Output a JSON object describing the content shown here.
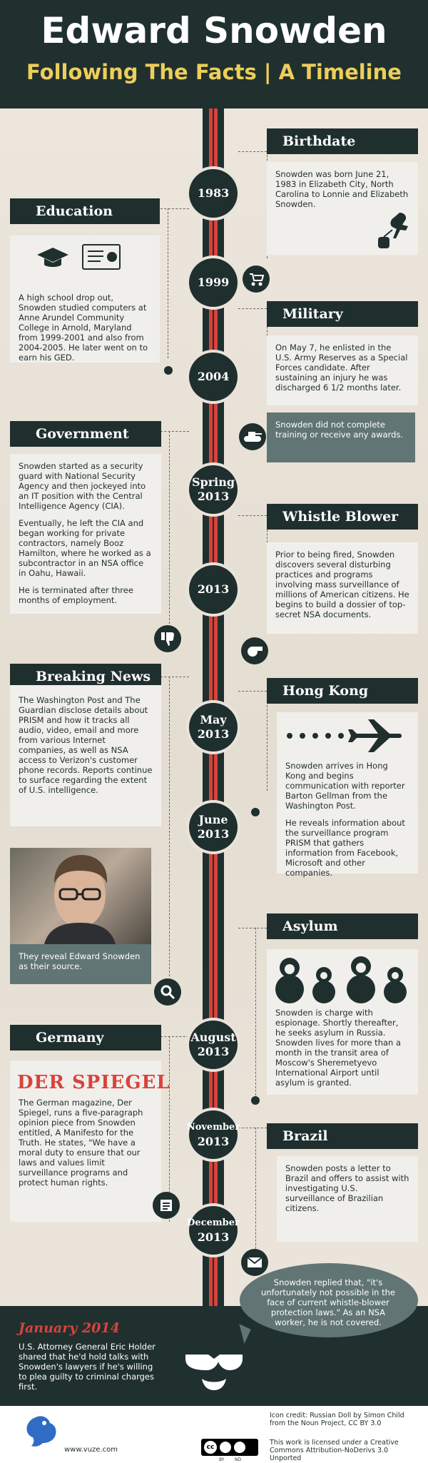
{
  "header": {
    "title": "Edward Snowden",
    "subtitle": "Following The Facts | A Timeline"
  },
  "nodes": [
    {
      "line1": "1983",
      "line2": ""
    },
    {
      "line1": "1999",
      "line2": ""
    },
    {
      "line1": "2004",
      "line2": ""
    },
    {
      "line1": "Spring",
      "line2": "2013"
    },
    {
      "line1": "2013",
      "line2": ""
    },
    {
      "line1": "May",
      "line2": "2013"
    },
    {
      "line1": "June",
      "line2": "2013"
    },
    {
      "line1": "August",
      "line2": "2013"
    },
    {
      "line1": "November",
      "line2": "2013"
    },
    {
      "line1": "December",
      "line2": "2013"
    }
  ],
  "birthdate": {
    "label": "Birthdate",
    "text": "Snowden was born June 21, 1983 in Elizabeth City, North Carolina to Lonnie and Elizabeth Snowden."
  },
  "education": {
    "label": "Education",
    "text": "A high school drop out, Snowden studied computers at Anne Arundel Community College in Arnold, Maryland from 1999-2001 and also from 2004-2005. He later went on to earn his GED."
  },
  "military": {
    "label": "Military",
    "text": "On May 7, he enlisted in the U.S. Army Reserves as a Special Forces candidate. After sustaining an injury he was discharged 6 1/2 months later.",
    "note": "Snowden did not complete training or receive any awards."
  },
  "government": {
    "label": "Government",
    "p1": "Snowden started as a security guard with National Security Agency and then jockeyed into an IT position with the Central Intelligence Agency (CIA).",
    "p2": "Eventually, he left the CIA and began working for private contractors, namely Booz Hamilton, where he worked as a subcontractor in an NSA office in Oahu, Hawaii.",
    "p3": "He is terminated after three months of employment."
  },
  "whistle": {
    "label": "Whistle Blower",
    "text": "Prior to being fired, Snowden discovers several disturbing practices and programs involving mass surveillance of millions of American citizens. He begins to build a dossier of top-secret NSA documents."
  },
  "breaking": {
    "label": "Breaking News",
    "text": "The Washington Post and The Guardian disclose details about PRISM and how it tracks all audio, video, email and more from various Internet companies, as well as NSA access to Verizon's customer phone records. Reports continue to surface regarding the extent of U.S. intelligence.",
    "caption": "They reveal Edward Snowden as their source."
  },
  "hongkong": {
    "label": "Hong Kong",
    "p1": "Snowden arrives in Hong Kong and begins communication with reporter Barton Gellman from the Washington Post.",
    "p2": "He reveals information about the surveillance program PRISM that gathers information from Facebook, Microsoft and other companies."
  },
  "asylum": {
    "label": "Asylum",
    "text": "Snowden is charge with espionage. Shortly thereafter, he seeks asylum in Russia. Snowden lives for more than a month in the transit area of Moscow's Sheremetyevo International Airport until asylum is granted."
  },
  "germany": {
    "label": "Germany",
    "logo": "DER SPIEGEL",
    "text": "The German magazine, Der Spiegel, runs a five-paragraph opinion piece from Snowden entitled, A Manifesto for the Truth. He states, \"We have a moral duty to ensure that our laws and values limit surveillance programs and protect human rights."
  },
  "brazil": {
    "label": "Brazil",
    "text": "Snowden posts a letter to Brazil and offers to assist with investigating U.S. surveillance of Brazilian citizens."
  },
  "january": {
    "label": "January 2014",
    "text": "U.S. Attorney General Eric Holder shared that he'd hold talks with Snowden's lawyers if he's willing to plea guilty to criminal charges first.",
    "bubble": "Snowden replied that, \"it's unfortunately not possible in the face of current whistle-blower protection laws.\" As an NSA worker, he is not covered."
  },
  "footer": {
    "site": "www.vuze.com",
    "credit": "Icon credit:  Russian Doll by Simon Child from the Noun Project, CC BY 3.0",
    "license": "This work is licensed under a Creative Commons Attribution-NoDerivs 3.0 Unported",
    "cc_by": "BY",
    "cc_nd": "ND"
  },
  "colors": {
    "dark": "#1f2f2e",
    "red": "#d8433c",
    "gold": "#ecce5a",
    "slate": "#617574",
    "card": "#f1efeb"
  },
  "icons": [
    "stork-icon",
    "stroller-icon",
    "graduation-cap-icon",
    "diploma-icon",
    "tank-icon",
    "thumbs-down-icon",
    "whistle-icon",
    "airplane-icon",
    "magnifier-icon",
    "russian-doll-icon",
    "newspaper-icon",
    "envelope-icon",
    "frog-logo-icon",
    "snowden-face-icon",
    "creative-commons-icon"
  ]
}
